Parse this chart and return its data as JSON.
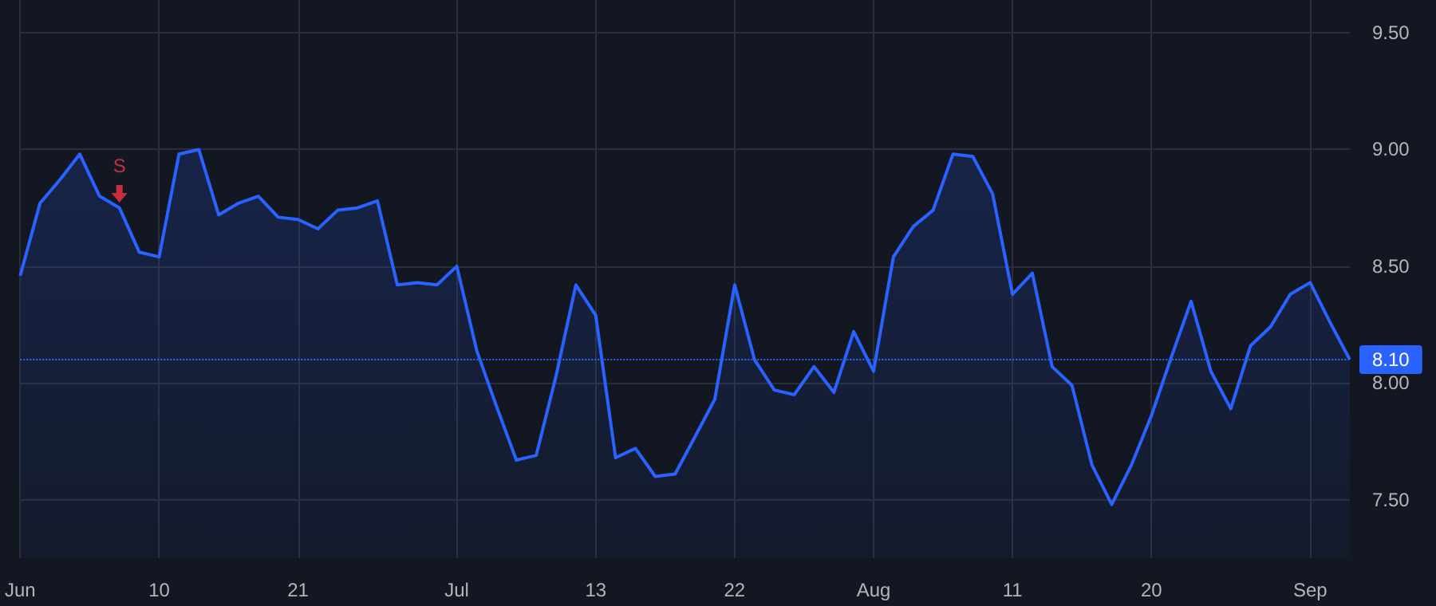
{
  "chart_data": {
    "type": "area",
    "categories": [
      "Jun",
      null,
      null,
      null,
      null,
      null,
      null,
      "10",
      null,
      null,
      null,
      null,
      null,
      null,
      "21",
      null,
      null,
      null,
      null,
      null,
      null,
      null,
      "Jul",
      null,
      null,
      null,
      null,
      null,
      null,
      "13",
      null,
      null,
      null,
      null,
      null,
      null,
      "22",
      null,
      null,
      null,
      null,
      null,
      null,
      "Aug",
      null,
      null,
      null,
      null,
      null,
      null,
      "11",
      null,
      null,
      null,
      null,
      null,
      null,
      "20",
      null,
      null,
      null,
      null,
      null,
      null,
      null,
      "Sep",
      null,
      null
    ],
    "series": [
      {
        "color": "#2962ff",
        "values": [
          8.46,
          8.77,
          8.87,
          8.98,
          8.8,
          8.75,
          8.56,
          8.54,
          8.98,
          9.0,
          8.72,
          8.77,
          8.8,
          8.71,
          8.7,
          8.66,
          8.74,
          8.75,
          8.78,
          8.42,
          8.43,
          8.42,
          8.5,
          8.14,
          7.9,
          7.67,
          7.69,
          8.03,
          8.42,
          8.29,
          7.68,
          7.72,
          7.6,
          7.61,
          7.77,
          7.93,
          8.42,
          8.1,
          7.97,
          7.95,
          8.07,
          7.96,
          8.22,
          8.05,
          8.54,
          8.67,
          8.74,
          8.98,
          8.97,
          8.81,
          8.38,
          8.47,
          8.07,
          7.99,
          7.65,
          7.48,
          7.65,
          7.86,
          8.11,
          8.35,
          8.05,
          7.89,
          8.16,
          8.24,
          8.38,
          8.43,
          8.26,
          8.1
        ]
      },
      {
        "name": "S",
        "type": "scatter",
        "marker": "triangle",
        "color": "#f23645",
        "values": [
          null,
          null,
          null,
          null,
          null,
          8.81,
          null,
          null,
          null,
          null,
          null,
          null,
          null,
          null,
          null,
          null,
          null,
          null,
          null,
          null,
          null,
          null,
          null,
          null,
          null,
          null,
          null,
          null,
          null,
          null,
          null,
          null,
          null,
          null,
          null,
          null,
          null,
          null,
          null,
          null,
          null,
          null,
          null,
          null,
          null,
          null,
          null,
          null,
          null,
          null,
          null,
          null,
          null,
          null,
          null,
          null,
          null,
          null,
          null,
          null,
          null,
          null,
          null,
          null,
          null,
          null,
          null,
          null
        ]
      }
    ],
    "ylim": [
      7.25,
      9.64
    ],
    "yticks": [
      {
        "value": 7.5,
        "label": "7.50"
      },
      {
        "value": 8,
        "label": "8.00"
      },
      {
        "value": 8.5,
        "label": "8.50"
      },
      {
        "value": 9,
        "label": "9.00"
      },
      {
        "value": 9.5,
        "label": "9.50"
      }
    ],
    "ref_lines": [
      {
        "axis": "y",
        "value": 8.1,
        "label": "8.10",
        "color": "#2962ff",
        "line_style": "dotted"
      }
    ],
    "grid": true,
    "legend": false,
    "marker": "none",
    "line_style": "solid"
  }
}
